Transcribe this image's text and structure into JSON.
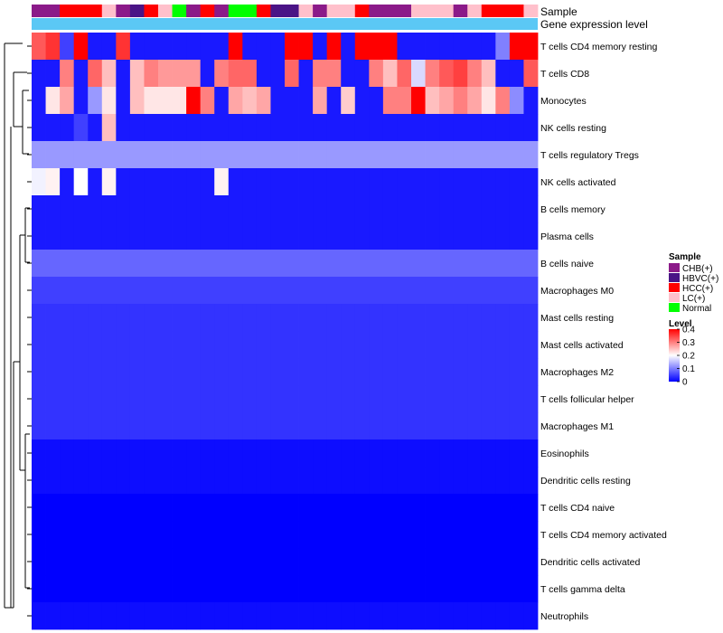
{
  "chart_data": {
    "type": "heatmap",
    "annotations": {
      "sample_track_label": "Sample",
      "level_track_label": "Gene expression level",
      "sample_types": [
        "CHB(+)",
        "HBVC(+)",
        "HCC(+)",
        "LC(+)",
        "Normal"
      ],
      "sample_colors": {
        "CHB(+)": "#8b1a89",
        "HBVC(+)": "#4a1486",
        "HCC(+)": "#ff0000",
        "LC(+)": "#ffc0cb",
        "Normal": "#00ff00"
      },
      "samples": [
        "CHB(+)",
        "CHB(+)",
        "HCC(+)",
        "HCC(+)",
        "HCC(+)",
        "LC(+)",
        "CHB(+)",
        "HBVC(+)",
        "HCC(+)",
        "LC(+)",
        "Normal",
        "CHB(+)",
        "HCC(+)",
        "CHB(+)",
        "Normal",
        "Normal",
        "HCC(+)",
        "HBVC(+)",
        "HBVC(+)",
        "LC(+)",
        "CHB(+)",
        "LC(+)",
        "LC(+)",
        "HCC(+)",
        "CHB(+)",
        "CHB(+)",
        "CHB(+)",
        "LC(+)",
        "LC(+)",
        "LC(+)",
        "CHB(+)",
        "LC(+)",
        "HCC(+)",
        "HCC(+)",
        "HCC(+)",
        "LC(+)"
      ],
      "level_color": "#5bc8f5"
    },
    "rows": [
      "T cells CD4 memory resting",
      "T cells CD8",
      "Monocytes",
      "NK cells resting",
      "T cells regulatory  Tregs",
      "NK cells activated",
      "B cells memory",
      "Plasma cells",
      "B cells naive",
      "Macrophages M0",
      "Mast cells resting",
      "Mast cells activated",
      "Macrophages M2",
      "T cells follicular helper",
      "Macrophages M1",
      "Eosinophils",
      "Dendritic cells resting",
      "T cells CD4 naive",
      "T cells CD4 memory activated",
      "Dendritic cells activated",
      "T cells gamma delta",
      "Neutrophils"
    ],
    "values": [
      [
        0.33,
        0.36,
        0.05,
        0.45,
        0.02,
        0.02,
        0.36,
        0.02,
        0.02,
        0.02,
        0.02,
        0.02,
        0.02,
        0.02,
        0.42,
        0.02,
        0.02,
        0.02,
        0.45,
        0.45,
        0.02,
        0.45,
        0.02,
        0.45,
        0.45,
        0.45,
        0.02,
        0.02,
        0.02,
        0.02,
        0.02,
        0.02,
        0.02,
        0.1,
        0.45,
        0.4
      ],
      [
        0.02,
        0.02,
        0.3,
        0.02,
        0.32,
        0.25,
        0.02,
        0.25,
        0.3,
        0.28,
        0.28,
        0.28,
        0.02,
        0.3,
        0.32,
        0.32,
        0.02,
        0.02,
        0.32,
        0.02,
        0.3,
        0.3,
        0.02,
        0.02,
        0.3,
        0.25,
        0.32,
        0.17,
        0.3,
        0.33,
        0.35,
        0.3,
        0.25,
        0.02,
        0.02,
        0.33
      ],
      [
        0.02,
        0.22,
        0.27,
        0.02,
        0.12,
        0.22,
        0.02,
        0.25,
        0.22,
        0.22,
        0.22,
        0.4,
        0.3,
        0.02,
        0.27,
        0.25,
        0.27,
        0.02,
        0.02,
        0.02,
        0.27,
        0.02,
        0.24,
        0.02,
        0.02,
        0.3,
        0.3,
        0.45,
        0.25,
        0.27,
        0.3,
        0.27,
        0.22,
        0.3,
        0.11,
        0.02
      ],
      [
        0.02,
        0.02,
        0.02,
        0.05,
        0.02,
        0.25,
        0.02,
        0.02,
        0.02,
        0.02,
        0.02,
        0.02,
        0.02,
        0.02,
        0.02,
        0.02,
        0.02,
        0.02,
        0.02,
        0.02,
        0.02,
        0.02,
        0.02,
        0.02,
        0.02,
        0.02,
        0.02,
        0.02,
        0.02,
        0.02,
        0.02,
        0.02,
        0.02,
        0.02,
        0.02,
        0.02
      ],
      [
        0.12,
        0.12,
        0.12,
        0.12,
        0.12,
        0.12,
        0.12,
        0.12,
        0.12,
        0.12,
        0.12,
        0.12,
        0.12,
        0.12,
        0.12,
        0.12,
        0.12,
        0.12,
        0.12,
        0.12,
        0.12,
        0.12,
        0.12,
        0.12,
        0.12,
        0.12,
        0.12,
        0.12,
        0.12,
        0.12,
        0.12,
        0.12,
        0.12,
        0.12,
        0.12,
        0.12
      ],
      [
        0.19,
        0.21,
        0.02,
        0.2,
        0.02,
        0.21,
        0.02,
        0.02,
        0.02,
        0.02,
        0.02,
        0.02,
        0.02,
        0.21,
        0.02,
        0.02,
        0.02,
        0.02,
        0.02,
        0.02,
        0.02,
        0.02,
        0.02,
        0.02,
        0.02,
        0.02,
        0.02,
        0.02,
        0.02,
        0.02,
        0.02,
        0.02,
        0.02,
        0.02,
        0.02,
        0.02
      ],
      [
        0.02,
        0.02,
        0.02,
        0.02,
        0.02,
        0.02,
        0.02,
        0.02,
        0.02,
        0.02,
        0.02,
        0.02,
        0.02,
        0.02,
        0.02,
        0.02,
        0.02,
        0.02,
        0.02,
        0.02,
        0.02,
        0.02,
        0.02,
        0.02,
        0.02,
        0.02,
        0.02,
        0.02,
        0.02,
        0.02,
        0.02,
        0.02,
        0.02,
        0.02,
        0.02,
        0.02
      ],
      [
        0.02,
        0.02,
        0.02,
        0.02,
        0.02,
        0.02,
        0.02,
        0.02,
        0.02,
        0.02,
        0.02,
        0.02,
        0.02,
        0.02,
        0.02,
        0.02,
        0.02,
        0.02,
        0.02,
        0.02,
        0.02,
        0.02,
        0.02,
        0.02,
        0.02,
        0.02,
        0.02,
        0.02,
        0.02,
        0.02,
        0.02,
        0.02,
        0.02,
        0.02,
        0.02,
        0.02
      ],
      [
        0.08,
        0.08,
        0.08,
        0.08,
        0.08,
        0.08,
        0.08,
        0.08,
        0.08,
        0.08,
        0.08,
        0.08,
        0.08,
        0.08,
        0.08,
        0.08,
        0.08,
        0.08,
        0.08,
        0.08,
        0.08,
        0.08,
        0.08,
        0.08,
        0.08,
        0.08,
        0.08,
        0.08,
        0.08,
        0.08,
        0.08,
        0.08,
        0.08,
        0.08,
        0.08,
        0.08
      ],
      [
        0.05,
        0.05,
        0.05,
        0.05,
        0.05,
        0.05,
        0.05,
        0.05,
        0.05,
        0.05,
        0.05,
        0.05,
        0.05,
        0.05,
        0.05,
        0.05,
        0.05,
        0.05,
        0.05,
        0.05,
        0.05,
        0.05,
        0.05,
        0.05,
        0.05,
        0.05,
        0.05,
        0.05,
        0.05,
        0.05,
        0.05,
        0.05,
        0.05,
        0.05,
        0.05,
        0.05
      ],
      [
        0.04,
        0.04,
        0.04,
        0.04,
        0.04,
        0.04,
        0.04,
        0.04,
        0.04,
        0.04,
        0.04,
        0.04,
        0.04,
        0.04,
        0.04,
        0.04,
        0.04,
        0.04,
        0.04,
        0.04,
        0.04,
        0.04,
        0.04,
        0.04,
        0.04,
        0.04,
        0.04,
        0.04,
        0.04,
        0.04,
        0.04,
        0.04,
        0.04,
        0.04,
        0.04,
        0.04
      ],
      [
        0.04,
        0.04,
        0.04,
        0.04,
        0.04,
        0.04,
        0.04,
        0.04,
        0.04,
        0.04,
        0.04,
        0.04,
        0.04,
        0.04,
        0.04,
        0.04,
        0.04,
        0.04,
        0.04,
        0.04,
        0.04,
        0.04,
        0.04,
        0.04,
        0.04,
        0.04,
        0.04,
        0.04,
        0.04,
        0.04,
        0.04,
        0.04,
        0.04,
        0.04,
        0.04,
        0.04
      ],
      [
        0.04,
        0.04,
        0.04,
        0.04,
        0.04,
        0.04,
        0.04,
        0.04,
        0.04,
        0.04,
        0.04,
        0.04,
        0.04,
        0.04,
        0.04,
        0.04,
        0.04,
        0.04,
        0.04,
        0.04,
        0.04,
        0.04,
        0.04,
        0.04,
        0.04,
        0.04,
        0.04,
        0.04,
        0.04,
        0.04,
        0.04,
        0.04,
        0.04,
        0.04,
        0.04,
        0.04
      ],
      [
        0.04,
        0.04,
        0.04,
        0.04,
        0.04,
        0.04,
        0.04,
        0.04,
        0.04,
        0.04,
        0.04,
        0.04,
        0.04,
        0.04,
        0.04,
        0.04,
        0.04,
        0.04,
        0.04,
        0.04,
        0.04,
        0.04,
        0.04,
        0.04,
        0.04,
        0.04,
        0.04,
        0.04,
        0.04,
        0.04,
        0.04,
        0.04,
        0.04,
        0.04,
        0.04,
        0.04
      ],
      [
        0.04,
        0.04,
        0.04,
        0.04,
        0.04,
        0.04,
        0.04,
        0.04,
        0.04,
        0.04,
        0.04,
        0.04,
        0.04,
        0.04,
        0.04,
        0.04,
        0.04,
        0.04,
        0.04,
        0.04,
        0.04,
        0.04,
        0.04,
        0.04,
        0.04,
        0.04,
        0.04,
        0.04,
        0.04,
        0.04,
        0.04,
        0.04,
        0.04,
        0.04,
        0.04,
        0.04
      ],
      [
        0.01,
        0.01,
        0.01,
        0.01,
        0.01,
        0.01,
        0.01,
        0.01,
        0.01,
        0.01,
        0.01,
        0.01,
        0.01,
        0.01,
        0.01,
        0.01,
        0.01,
        0.01,
        0.01,
        0.01,
        0.01,
        0.01,
        0.01,
        0.01,
        0.01,
        0.01,
        0.01,
        0.01,
        0.01,
        0.01,
        0.01,
        0.01,
        0.01,
        0.01,
        0.01,
        0.01
      ],
      [
        0.01,
        0.01,
        0.01,
        0.01,
        0.01,
        0.01,
        0.01,
        0.01,
        0.01,
        0.01,
        0.01,
        0.01,
        0.01,
        0.01,
        0.01,
        0.01,
        0.01,
        0.01,
        0.01,
        0.01,
        0.01,
        0.01,
        0.01,
        0.01,
        0.01,
        0.01,
        0.01,
        0.01,
        0.01,
        0.01,
        0.01,
        0.01,
        0.01,
        0.01,
        0.01,
        0.01
      ],
      [
        0.0,
        0.0,
        0.0,
        0.0,
        0.0,
        0.0,
        0.0,
        0.0,
        0.0,
        0.0,
        0.0,
        0.0,
        0.0,
        0.0,
        0.0,
        0.0,
        0.0,
        0.0,
        0.0,
        0.0,
        0.0,
        0.0,
        0.0,
        0.0,
        0.0,
        0.0,
        0.0,
        0.0,
        0.0,
        0.0,
        0.0,
        0.0,
        0.0,
        0.0,
        0.0,
        0.0
      ],
      [
        0.0,
        0.0,
        0.0,
        0.0,
        0.0,
        0.0,
        0.0,
        0.0,
        0.0,
        0.0,
        0.0,
        0.0,
        0.0,
        0.0,
        0.0,
        0.0,
        0.0,
        0.0,
        0.0,
        0.0,
        0.0,
        0.0,
        0.0,
        0.0,
        0.0,
        0.0,
        0.0,
        0.0,
        0.0,
        0.0,
        0.0,
        0.0,
        0.0,
        0.0,
        0.0,
        0.0
      ],
      [
        0.0,
        0.0,
        0.0,
        0.0,
        0.0,
        0.0,
        0.0,
        0.0,
        0.0,
        0.0,
        0.0,
        0.0,
        0.0,
        0.0,
        0.0,
        0.0,
        0.0,
        0.0,
        0.0,
        0.0,
        0.0,
        0.0,
        0.0,
        0.0,
        0.0,
        0.0,
        0.0,
        0.0,
        0.0,
        0.0,
        0.0,
        0.0,
        0.0,
        0.0,
        0.0,
        0.0
      ],
      [
        0.0,
        0.0,
        0.0,
        0.0,
        0.0,
        0.0,
        0.0,
        0.0,
        0.0,
        0.0,
        0.0,
        0.0,
        0.0,
        0.0,
        0.0,
        0.0,
        0.0,
        0.0,
        0.0,
        0.0,
        0.0,
        0.0,
        0.0,
        0.0,
        0.0,
        0.0,
        0.0,
        0.0,
        0.0,
        0.0,
        0.0,
        0.0,
        0.0,
        0.0,
        0.0,
        0.0
      ],
      [
        0.01,
        0.01,
        0.01,
        0.01,
        0.01,
        0.01,
        0.01,
        0.01,
        0.01,
        0.01,
        0.01,
        0.01,
        0.01,
        0.01,
        0.01,
        0.01,
        0.01,
        0.01,
        0.01,
        0.01,
        0.01,
        0.01,
        0.01,
        0.01,
        0.01,
        0.01,
        0.01,
        0.01,
        0.01,
        0.01,
        0.01,
        0.01,
        0.01,
        0.01,
        0.01,
        0.01
      ]
    ],
    "color_scale": {
      "min": 0,
      "mid": 0.2,
      "max": 0.4,
      "low_color": "#0000ff",
      "mid_color": "#ffffff",
      "high_color": "#ff0000"
    },
    "legend_sample": {
      "title": "Sample",
      "items": [
        "CHB(+)",
        "HBVC(+)",
        "HCC(+)",
        "LC(+)",
        "Normal"
      ]
    },
    "legend_level": {
      "title": "Level",
      "ticks": [
        "0.4",
        "0.3",
        "0.2",
        "0.1",
        "0"
      ]
    }
  }
}
